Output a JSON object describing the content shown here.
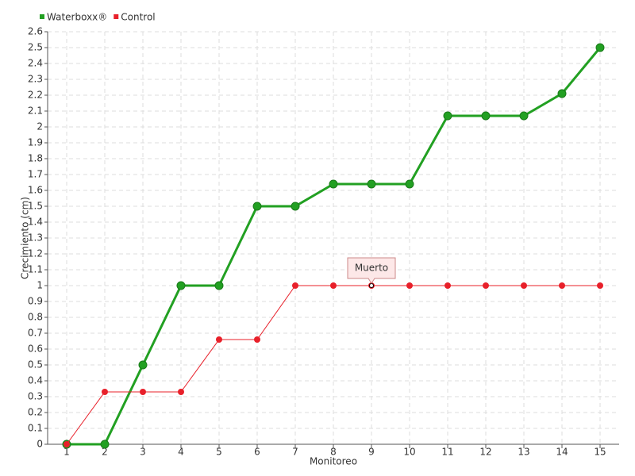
{
  "chart_data": {
    "type": "line",
    "x_label": "Monitoreo",
    "y_label": "Crecimiento (cm)",
    "x": [
      1,
      2,
      3,
      4,
      5,
      6,
      7,
      8,
      9,
      10,
      11,
      12,
      13,
      14,
      15
    ],
    "xlim": [
      0.5,
      15.5
    ],
    "xticks": [
      1,
      2,
      3,
      4,
      5,
      6,
      7,
      8,
      9,
      10,
      11,
      12,
      13,
      14,
      15
    ],
    "ylim": [
      0,
      2.6
    ],
    "yticks": [
      0,
      0.1,
      0.2,
      0.3,
      0.4,
      0.5,
      0.6,
      0.7,
      0.8,
      0.9,
      1,
      1.1,
      1.2,
      1.3,
      1.4,
      1.5,
      1.6,
      1.7,
      1.8,
      1.9,
      2,
      2.1,
      2.2,
      2.3,
      2.4,
      2.5,
      2.6
    ],
    "grid": true,
    "legend": "top-left",
    "series": [
      {
        "name": "Waterboxx®",
        "color": "#22a022",
        "values": [
          0,
          0,
          0.5,
          1,
          1,
          1.5,
          1.5,
          1.64,
          1.64,
          1.64,
          2.07,
          2.07,
          2.07,
          2.21,
          2.5
        ]
      },
      {
        "name": "Control",
        "color": "#e8202a",
        "values": [
          0,
          0.33,
          0.33,
          0.33,
          0.66,
          0.66,
          1,
          1,
          1,
          1,
          1,
          1,
          1,
          1,
          1
        ]
      }
    ],
    "annotations": [
      {
        "text": "Muerto",
        "x": 9,
        "y": 1
      }
    ]
  }
}
